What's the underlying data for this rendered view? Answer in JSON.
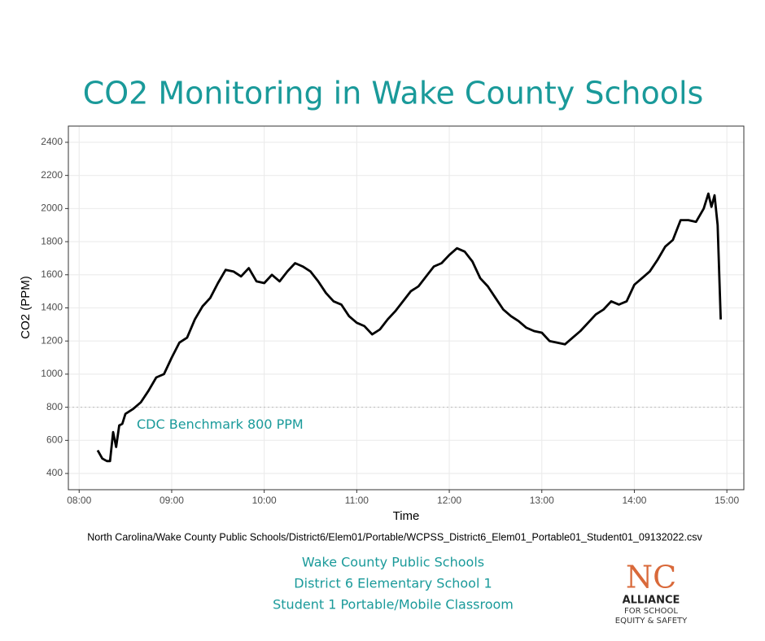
{
  "chart_data": {
    "type": "line",
    "title": "CO2 Monitoring in Wake County Schools",
    "x_label": "Time",
    "y_label": "CO2 (PPM)",
    "caption": "North Carolina/Wake County Public Schools/District6/Elem01/Portable/WCPSS_District6_Elem01_Portable01_Student01_09132022.csv",
    "x": [
      "08:12",
      "08:15",
      "08:18",
      "08:20",
      "08:22",
      "08:24",
      "08:26",
      "08:28",
      "08:30",
      "08:35",
      "08:40",
      "08:45",
      "08:50",
      "08:55",
      "09:00",
      "09:05",
      "09:10",
      "09:15",
      "09:20",
      "09:25",
      "09:30",
      "09:35",
      "09:40",
      "09:45",
      "09:50",
      "09:55",
      "10:00",
      "10:05",
      "10:10",
      "10:15",
      "10:20",
      "10:25",
      "10:30",
      "10:35",
      "10:40",
      "10:45",
      "10:50",
      "10:55",
      "11:00",
      "11:05",
      "11:10",
      "11:15",
      "11:20",
      "11:25",
      "11:30",
      "11:35",
      "11:40",
      "11:45",
      "11:50",
      "11:55",
      "12:00",
      "12:05",
      "12:10",
      "12:15",
      "12:20",
      "12:25",
      "12:30",
      "12:35",
      "12:40",
      "12:45",
      "12:50",
      "12:55",
      "13:00",
      "13:05",
      "13:10",
      "13:15",
      "13:20",
      "13:25",
      "13:30",
      "13:35",
      "13:40",
      "13:45",
      "13:50",
      "13:55",
      "14:00",
      "14:05",
      "14:10",
      "14:15",
      "14:20",
      "14:25",
      "14:30",
      "14:35",
      "14:40",
      "14:45",
      "14:48",
      "14:50",
      "14:52",
      "14:54",
      "14:56"
    ],
    "values": [
      540,
      490,
      475,
      475,
      650,
      560,
      690,
      700,
      760,
      790,
      830,
      900,
      980,
      1000,
      1100,
      1190,
      1220,
      1330,
      1410,
      1460,
      1550,
      1630,
      1620,
      1590,
      1640,
      1560,
      1550,
      1600,
      1560,
      1620,
      1670,
      1650,
      1620,
      1560,
      1490,
      1440,
      1420,
      1350,
      1310,
      1290,
      1240,
      1270,
      1330,
      1380,
      1440,
      1500,
      1530,
      1590,
      1650,
      1670,
      1720,
      1760,
      1740,
      1680,
      1580,
      1530,
      1460,
      1390,
      1350,
      1320,
      1280,
      1260,
      1250,
      1200,
      1190,
      1180,
      1220,
      1260,
      1310,
      1360,
      1390,
      1440,
      1420,
      1440,
      1540,
      1580,
      1620,
      1690,
      1770,
      1810,
      1930,
      1930,
      1920,
      2000,
      2090,
      2010,
      2080,
      1900,
      1330
    ],
    "color": "#000000",
    "xlim": [
      "07:53",
      "15:11"
    ],
    "xticks": [
      "08:00",
      "09:00",
      "10:00",
      "11:00",
      "12:00",
      "13:00",
      "14:00",
      "15:00"
    ],
    "ylim": [
      302,
      2498
    ],
    "yticks": [
      400,
      600,
      800,
      1000,
      1200,
      1400,
      1600,
      1800,
      2000,
      2200,
      2400
    ],
    "grid": true,
    "benchmark": {
      "value": 800,
      "label": "CDC Benchmark 800 PPM",
      "color": "#1a9a9a"
    }
  },
  "footer": {
    "lines": [
      "Wake County Public Schools",
      "District 6  Elementary School 1",
      "Student 1 Portable/Mobile Classroom"
    ]
  },
  "logo": {
    "mark": "NC",
    "name": "ALLIANCE",
    "line1": "FOR SCHOOL",
    "line2": "EQUITY & SAFETY"
  }
}
